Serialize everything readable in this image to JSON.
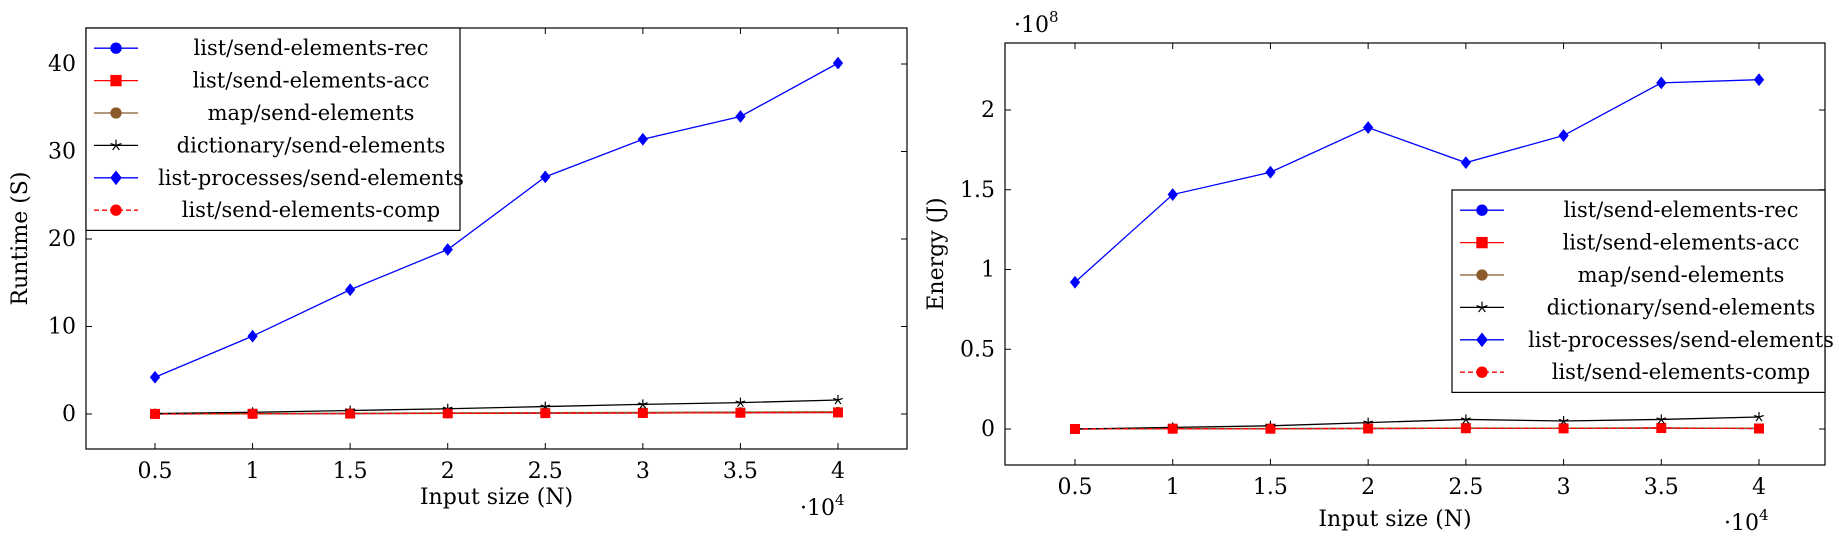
{
  "chart_data": [
    {
      "type": "line",
      "xlabel": "Input size (N)",
      "ylabel": "Runtime (S)",
      "x_multiplier_label": "·10",
      "x_multiplier_exp": "4",
      "x_ticks": [
        "0.5",
        "1",
        "1.5",
        "2",
        "2.5",
        "3",
        "3.5",
        "4"
      ],
      "y_ticks": [
        "0",
        "10",
        "20",
        "30",
        "40"
      ],
      "xlim": [
        0.5,
        4.0
      ],
      "ylim": [
        -4,
        44
      ],
      "x": [
        0.5,
        1,
        1.5,
        2,
        2.5,
        3,
        3.5,
        4
      ],
      "legend_position": "top-left",
      "grid": false,
      "series": [
        {
          "name": "list/send-elements-rec",
          "color": "#0000ff",
          "marker": "circle",
          "dash": false,
          "values": [
            0.01,
            0.03,
            0.05,
            0.08,
            0.1,
            0.12,
            0.15,
            0.18
          ]
        },
        {
          "name": "list/send-elements-acc",
          "color": "#ff0000",
          "marker": "square",
          "dash": false,
          "values": [
            0.01,
            0.03,
            0.05,
            0.08,
            0.1,
            0.12,
            0.15,
            0.18
          ]
        },
        {
          "name": "map/send-elements",
          "color": "#8b5a2b",
          "marker": "circle",
          "dash": false,
          "values": [
            0.02,
            0.05,
            0.08,
            0.12,
            0.15,
            0.18,
            0.22,
            0.26
          ]
        },
        {
          "name": "dictionary/send-elements",
          "color": "#000000",
          "marker": "star",
          "dash": false,
          "values": [
            0.05,
            0.2,
            0.4,
            0.6,
            0.85,
            1.1,
            1.3,
            1.6
          ]
        },
        {
          "name": "list-processes/send-elements",
          "color": "#0000ff",
          "marker": "diamond",
          "dash": false,
          "values": [
            4.2,
            8.9,
            14.2,
            18.8,
            27.1,
            31.4,
            34.0,
            40.1
          ]
        },
        {
          "name": "list/send-elements-comp",
          "color": "#ff0000",
          "marker": "circle",
          "dash": true,
          "values": [
            0.01,
            0.03,
            0.05,
            0.08,
            0.1,
            0.12,
            0.15,
            0.18
          ]
        }
      ]
    },
    {
      "type": "line",
      "xlabel": "Input size (N)",
      "ylabel": "Energy (J)",
      "x_multiplier_label": "·10",
      "x_multiplier_exp": "4",
      "y_multiplier_label": "·10",
      "y_multiplier_exp": "8",
      "x_ticks": [
        "0.5",
        "1",
        "1.5",
        "2",
        "2.5",
        "3",
        "3.5",
        "4"
      ],
      "y_ticks": [
        "0",
        "0.5",
        "1",
        "1.5",
        "2"
      ],
      "xlim": [
        0.5,
        4.0
      ],
      "ylim": [
        -0.22,
        2.42
      ],
      "x": [
        0.5,
        1,
        1.5,
        2,
        2.5,
        3,
        3.5,
        4
      ],
      "legend_position": "right",
      "grid": false,
      "series": [
        {
          "name": "list/send-elements-rec",
          "color": "#0000ff",
          "marker": "circle",
          "dash": false,
          "values": [
            0.0,
            0.002,
            0.002,
            0.003,
            0.005,
            0.004,
            0.006,
            0.003
          ]
        },
        {
          "name": "list/send-elements-acc",
          "color": "#ff0000",
          "marker": "square",
          "dash": false,
          "values": [
            0.0,
            0.002,
            0.002,
            0.003,
            0.005,
            0.004,
            0.006,
            0.003
          ]
        },
        {
          "name": "map/send-elements",
          "color": "#8b5a2b",
          "marker": "circle",
          "dash": false,
          "values": [
            0.0,
            0.003,
            0.003,
            0.004,
            0.006,
            0.005,
            0.007,
            0.004
          ]
        },
        {
          "name": "dictionary/send-elements",
          "color": "#000000",
          "marker": "star",
          "dash": false,
          "values": [
            0.0,
            0.01,
            0.02,
            0.04,
            0.06,
            0.05,
            0.06,
            0.075
          ]
        },
        {
          "name": "list-processes/send-elements",
          "color": "#0000ff",
          "marker": "diamond",
          "dash": false,
          "values": [
            0.92,
            1.47,
            1.61,
            1.89,
            1.67,
            1.84,
            2.17,
            2.19
          ]
        },
        {
          "name": "list/send-elements-comp",
          "color": "#ff0000",
          "marker": "circle",
          "dash": true,
          "values": [
            0.0,
            0.002,
            0.002,
            0.003,
            0.005,
            0.004,
            0.006,
            0.003
          ]
        }
      ]
    }
  ]
}
